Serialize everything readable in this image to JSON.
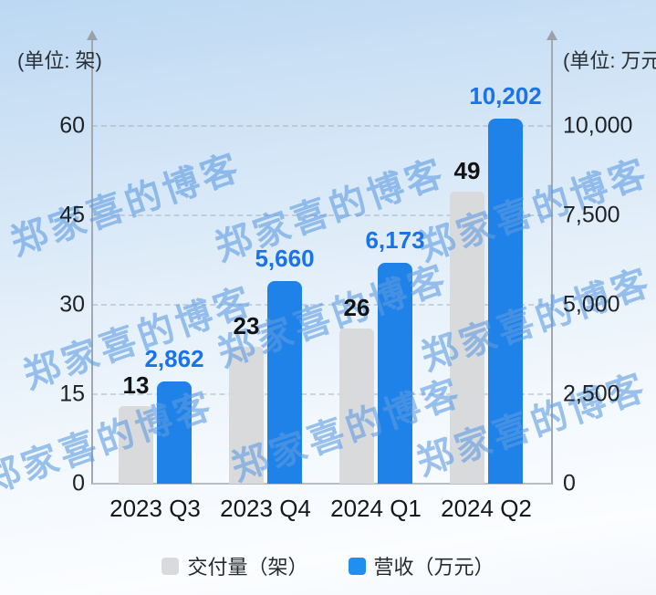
{
  "watermark": {
    "text": "郑家喜的博客"
  },
  "left_axis": {
    "unit_label": "(单位: 架)",
    "tick_labels": [
      "0",
      "15",
      "30",
      "45",
      "60"
    ],
    "tick_values": [
      0,
      15,
      30,
      45,
      60
    ]
  },
  "right_axis": {
    "unit_label": "(单位: 万元)",
    "tick_labels": [
      "0",
      "2,500",
      "5,000",
      "7,500",
      "10,000"
    ],
    "tick_values": [
      0,
      2500,
      5000,
      7500,
      10000
    ]
  },
  "legend": [
    {
      "label": "交付量（架）",
      "color": "#D9DADC"
    },
    {
      "label": "营收（万元）",
      "color": "#2090F0"
    }
  ],
  "chart_data": {
    "type": "bar",
    "categories": [
      "2023 Q3",
      "2023 Q4",
      "2024 Q1",
      "2024 Q2"
    ],
    "series": [
      {
        "name": "交付量（架）",
        "axis": "left",
        "color": "#D9DADC",
        "values": [
          13,
          23,
          26,
          49
        ],
        "value_labels": [
          "13",
          "23",
          "26",
          "49"
        ],
        "label_color": "#111315"
      },
      {
        "name": "营收（万元）",
        "axis": "right",
        "color": "#1E82E8",
        "values": [
          2862,
          5660,
          6173,
          10202
        ],
        "value_labels": [
          "2,862",
          "5,660",
          "6,173",
          "10,202"
        ],
        "label_color": "#1A73E8"
      }
    ],
    "ylim_left": [
      0,
      65
    ],
    "ylim_right": [
      0,
      10833
    ],
    "grid": "horizontal dashed",
    "legend_position": "bottom",
    "title": ""
  }
}
